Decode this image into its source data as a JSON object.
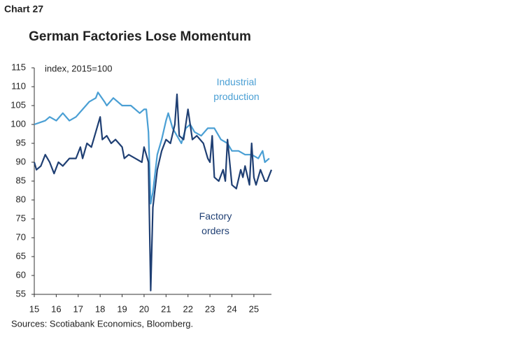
{
  "header": "Chart 27",
  "chart_data": {
    "type": "line",
    "title": "German Factories Lose Momentum",
    "annotation": "index, 2015=100",
    "source": "Sources: Scotiabank Economics, Bloomberg.",
    "xlim": [
      15,
      25.8
    ],
    "xticks": [
      15,
      16,
      17,
      18,
      19,
      20,
      21,
      22,
      23,
      24,
      25
    ],
    "ylim": [
      55,
      115
    ],
    "yticks": [
      55,
      60,
      65,
      70,
      75,
      80,
      85,
      90,
      95,
      100,
      105,
      110,
      115
    ],
    "grid": false,
    "series": [
      {
        "name": "Industrial production",
        "color": "#4a9fd4",
        "x": [
          15.0,
          15.5,
          15.7,
          16.0,
          16.3,
          16.6,
          16.9,
          17.2,
          17.5,
          17.8,
          17.9,
          18.2,
          18.3,
          18.6,
          19.0,
          19.4,
          19.8,
          20.0,
          20.1,
          20.2,
          20.3,
          20.4,
          20.6,
          20.8,
          21.0,
          21.1,
          21.3,
          21.5,
          21.7,
          21.9,
          22.1,
          22.3,
          22.6,
          22.9,
          23.2,
          23.5,
          23.8,
          24.0,
          24.3,
          24.6,
          24.9,
          25.2,
          25.4,
          25.5,
          25.7
        ],
        "values": [
          100,
          101,
          102,
          101,
          103,
          101,
          102,
          104,
          106,
          107,
          108.5,
          106,
          105,
          107,
          105,
          105,
          103,
          104,
          104,
          98,
          79,
          82,
          92,
          96,
          101,
          103,
          99,
          97,
          95,
          99,
          100,
          98,
          97,
          99,
          99,
          96,
          95,
          93,
          93,
          92,
          92,
          91,
          93,
          90,
          91
        ]
      },
      {
        "name": "Factory orders",
        "color": "#1f3f73",
        "x": [
          15.0,
          15.1,
          15.3,
          15.5,
          15.7,
          15.9,
          16.1,
          16.3,
          16.6,
          16.9,
          17.1,
          17.2,
          17.4,
          17.6,
          17.8,
          18.0,
          18.1,
          18.3,
          18.5,
          18.7,
          19.0,
          19.1,
          19.3,
          19.6,
          19.9,
          20.0,
          20.2,
          20.3,
          20.4,
          20.6,
          20.8,
          21.0,
          21.2,
          21.4,
          21.5,
          21.6,
          21.8,
          22.0,
          22.2,
          22.4,
          22.7,
          22.9,
          23.0,
          23.1,
          23.2,
          23.4,
          23.6,
          23.7,
          23.8,
          24.0,
          24.2,
          24.4,
          24.5,
          24.6,
          24.8,
          24.9,
          25.0,
          25.1,
          25.3,
          25.5,
          25.6,
          25.8
        ],
        "values": [
          90,
          88,
          89,
          92,
          90,
          87,
          90,
          89,
          91,
          91,
          94,
          91,
          95,
          94,
          98,
          102,
          96,
          97,
          95,
          96,
          94,
          91,
          92,
          91,
          90,
          94,
          90,
          56,
          78,
          88,
          93,
          96,
          95,
          100,
          108,
          97,
          96,
          104,
          96,
          97,
          95,
          91,
          90,
          97,
          86,
          85,
          88,
          85,
          96,
          84,
          83,
          88,
          86,
          89,
          84,
          95,
          86,
          84,
          88,
          85,
          85,
          88
        ]
      }
    ]
  }
}
